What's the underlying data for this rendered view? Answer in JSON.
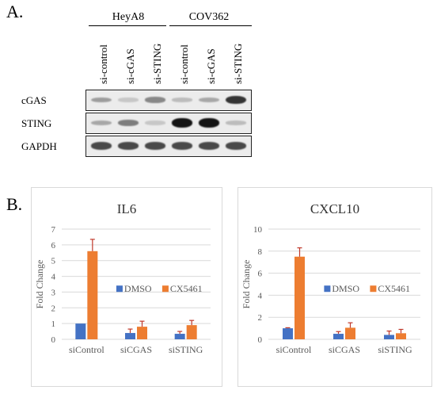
{
  "panel_a": {
    "letter": "A.",
    "groups": [
      {
        "label": "HeyA8"
      },
      {
        "label": "COV362"
      }
    ],
    "lanes": [
      "si-control",
      "si-cGAS",
      "si-STING",
      "si-control",
      "si-cGAS",
      "si-STING"
    ],
    "rows": [
      {
        "label": "cGAS",
        "band_intensity": [
          0.35,
          0.15,
          0.45,
          0.2,
          0.3,
          0.85
        ]
      },
      {
        "label": "STING",
        "band_intensity": [
          0.3,
          0.5,
          0.15,
          1.0,
          1.0,
          0.2
        ]
      },
      {
        "label": "GAPDH",
        "band_intensity": [
          0.75,
          0.75,
          0.75,
          0.75,
          0.75,
          0.75
        ]
      }
    ]
  },
  "panel_b": {
    "letter": "B."
  },
  "colors": {
    "dmso": "#4472c4",
    "cx5461": "#ed7d31",
    "error": "#c0392b",
    "grid": "#d9d9d9",
    "axis_text": "#595959"
  },
  "chart_data": [
    {
      "type": "bar",
      "title": "IL6",
      "ylabel": "Fold Change",
      "xlabel": "",
      "categories": [
        "siControl",
        "siCGAS",
        "siSTING"
      ],
      "ylim": [
        0,
        7
      ],
      "yticks": [
        0,
        1,
        2,
        3,
        4,
        5,
        6,
        7
      ],
      "grid": true,
      "legend": "center-right",
      "series": [
        {
          "name": "DMSO",
          "values": [
            1.0,
            0.4,
            0.35
          ],
          "errors": [
            0.0,
            0.25,
            0.15
          ]
        },
        {
          "name": "CX5461",
          "values": [
            5.6,
            0.8,
            0.9
          ],
          "errors": [
            0.75,
            0.35,
            0.3
          ]
        }
      ]
    },
    {
      "type": "bar",
      "title": "CXCL10",
      "ylabel": "Fold Change",
      "xlabel": "",
      "categories": [
        "siControl",
        "siCGAS",
        "siSTING"
      ],
      "ylim": [
        0,
        10
      ],
      "yticks": [
        0,
        2,
        4,
        6,
        8,
        10
      ],
      "grid": true,
      "legend": "center-right",
      "series": [
        {
          "name": "DMSO",
          "values": [
            1.0,
            0.5,
            0.4
          ],
          "errors": [
            0.05,
            0.2,
            0.35
          ]
        },
        {
          "name": "CX5461",
          "values": [
            7.5,
            1.05,
            0.55
          ],
          "errors": [
            0.8,
            0.45,
            0.35
          ]
        }
      ]
    }
  ]
}
